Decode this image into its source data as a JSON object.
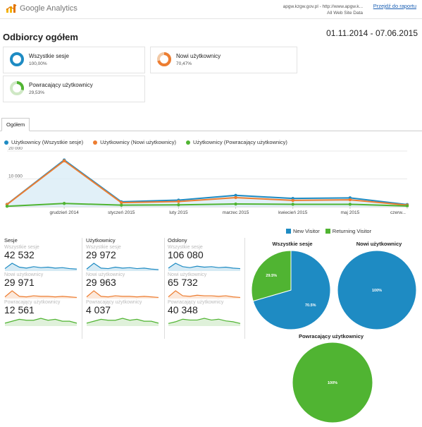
{
  "header": {
    "logo_text": "Google Analytics",
    "site_line1": "apgw.kzgw.gov.pl - http://www.apgw.k...",
    "site_line2": "All Web Site Data",
    "report_link": "Przejdź do raportu"
  },
  "title": "Odbiorcy ogółem",
  "date_range": "01.11.2014 - 07.06.2015",
  "segments": [
    {
      "name": "Wszystkie sesje",
      "pct": "100,00%",
      "color": "#1e8bc3"
    },
    {
      "name": "Nowi użytkownicy",
      "pct": "70,47%",
      "color": "#ed7d31"
    },
    {
      "name": "Powracający użytkownicy",
      "pct": "29,53%",
      "color": "#50b432"
    }
  ],
  "tabs": [
    {
      "label": "Ogółem"
    }
  ],
  "chart_data": [
    {
      "type": "line",
      "series": [
        {
          "name": "Użytkownicy (Wszystkie sesje)",
          "color": "#1e8bc3",
          "values": [
            900,
            16800,
            1800,
            2400,
            4100,
            3000,
            3200,
            800
          ]
        },
        {
          "name": "Użytkownicy (Nowi użytkownicy)",
          "color": "#ed7d31",
          "values": [
            850,
            16500,
            1500,
            1900,
            3300,
            2300,
            2500,
            600
          ]
        },
        {
          "name": "Użytkownicy (Powracający użytkownicy)",
          "color": "#50b432",
          "values": [
            200,
            1200,
            600,
            700,
            1000,
            900,
            900,
            300
          ]
        }
      ],
      "x_tick_labels": [
        "grudzień 2014",
        "styczeń 2015",
        "luty 2015",
        "marzec 2015",
        "kwiecień 2015",
        "maj 2015",
        "czerw..."
      ],
      "y_tick_labels": [
        "20 000",
        "10 000"
      ],
      "ylim": [
        0,
        20000
      ],
      "grid": true,
      "legend": "top-left"
    },
    {
      "type": "pie",
      "title": "Wszystkie sesje",
      "slices": [
        {
          "label": "New Visitor",
          "value": 70.5,
          "text": "70.5%",
          "color": "#1e8bc3"
        },
        {
          "label": "Returning Visitor",
          "value": 29.5,
          "text": "29.5%",
          "color": "#50b432"
        }
      ]
    },
    {
      "type": "pie",
      "title": "Nowi użytkownicy",
      "slices": [
        {
          "label": "New Visitor",
          "value": 100,
          "text": "100%",
          "color": "#1e8bc3"
        }
      ]
    },
    {
      "type": "pie",
      "title": "Powracający użytkownicy",
      "slices": [
        {
          "label": "Returning Visitor",
          "value": 100,
          "text": "100%",
          "color": "#50b432"
        }
      ]
    }
  ],
  "pie_legend": [
    {
      "label": "New Visitor",
      "color": "#1e8bc3"
    },
    {
      "label": "Returning Visitor",
      "color": "#50b432"
    }
  ],
  "metrics": [
    {
      "label": "Sesje",
      "rows": [
        {
          "segment": "Wszystkie sesje",
          "value": "42 532",
          "color": "#1e8bc3",
          "trend": [
            5,
            16,
            8,
            6,
            9,
            7,
            8,
            6,
            7,
            5,
            4
          ]
        },
        {
          "segment": "Nowi użytkownicy",
          "value": "29 971",
          "color": "#ed7d31",
          "trend": [
            3,
            14,
            4,
            3,
            5,
            4,
            4,
            3,
            4,
            3,
            2
          ]
        },
        {
          "segment": "Powracający użytkownicy",
          "value": "12 561",
          "color": "#50b432",
          "trend": [
            3,
            5,
            7,
            6,
            6,
            8,
            6,
            7,
            5,
            5,
            3
          ]
        }
      ]
    },
    {
      "label": "Użytkownicy",
      "rows": [
        {
          "segment": "Wszystkie sesje",
          "value": "29 972",
          "color": "#1e8bc3",
          "trend": [
            4,
            16,
            6,
            5,
            8,
            6,
            7,
            5,
            6,
            4,
            3
          ]
        },
        {
          "segment": "Nowi użytkownicy",
          "value": "29 963",
          "color": "#ed7d31",
          "trend": [
            3,
            14,
            4,
            3,
            5,
            4,
            4,
            3,
            4,
            3,
            2
          ]
        },
        {
          "segment": "Powracający użytkownicy",
          "value": "4 037",
          "color": "#50b432",
          "trend": [
            3,
            5,
            7,
            6,
            6,
            8,
            6,
            7,
            5,
            5,
            3
          ]
        }
      ]
    },
    {
      "label": "Odsłony",
      "rows": [
        {
          "segment": "Wszystkie sesje",
          "value": "106 080",
          "color": "#1e8bc3",
          "trend": [
            6,
            16,
            9,
            7,
            10,
            8,
            9,
            7,
            8,
            6,
            5
          ]
        },
        {
          "segment": "Nowi użytkownicy",
          "value": "65 732",
          "color": "#ed7d31",
          "trend": [
            3,
            14,
            5,
            4,
            6,
            5,
            5,
            4,
            5,
            3,
            2
          ]
        },
        {
          "segment": "Powracający użytkownicy",
          "value": "40 348",
          "color": "#50b432",
          "trend": [
            3,
            5,
            8,
            7,
            7,
            9,
            7,
            8,
            6,
            5,
            3
          ]
        }
      ]
    }
  ]
}
